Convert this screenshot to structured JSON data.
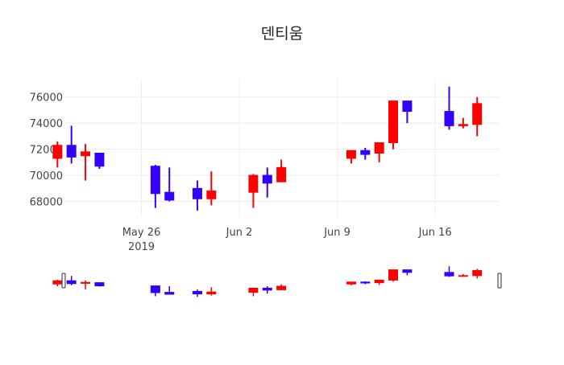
{
  "chart_data": {
    "type": "candlestick",
    "title": "덴티움",
    "xlabel": "",
    "ylabel": "",
    "x_ticks": [
      {
        "date": "2019-05-26",
        "label": "May 26",
        "sublabel": "2019"
      },
      {
        "date": "2019-06-02",
        "label": "Jun 2",
        "sublabel": ""
      },
      {
        "date": "2019-06-09",
        "label": "Jun 9",
        "sublabel": ""
      },
      {
        "date": "2019-06-16",
        "label": "Jun 16",
        "sublabel": ""
      }
    ],
    "y_ticks": [
      68000,
      70000,
      72000,
      74000,
      76000
    ],
    "y_tick_labels": [
      "68000",
      "70000",
      "72000",
      "74000",
      "76000"
    ],
    "xlim": [
      "2019-05-21",
      "2019-06-20"
    ],
    "ylim": [
      66800,
      77400
    ],
    "grid": true,
    "rangeslider": true,
    "increasing_color": "#ff0000",
    "decreasing_color": "#3300ff",
    "candles": [
      {
        "date": "2019-05-20",
        "open": 71300,
        "high": 72600,
        "low": 70600,
        "close": 72300
      },
      {
        "date": "2019-05-21",
        "open": 72300,
        "high": 73800,
        "low": 70900,
        "close": 71400
      },
      {
        "date": "2019-05-22",
        "open": 71500,
        "high": 72400,
        "low": 69600,
        "close": 71800
      },
      {
        "date": "2019-05-23",
        "open": 71700,
        "high": 71700,
        "low": 70500,
        "close": 70700
      },
      {
        "date": "2019-05-27",
        "open": 70700,
        "high": 70800,
        "low": 67500,
        "close": 68600
      },
      {
        "date": "2019-05-28",
        "open": 68700,
        "high": 70600,
        "low": 68000,
        "close": 68100
      },
      {
        "date": "2019-05-30",
        "open": 69000,
        "high": 69600,
        "low": 67300,
        "close": 68200
      },
      {
        "date": "2019-05-31",
        "open": 68200,
        "high": 70300,
        "low": 67700,
        "close": 68800
      },
      {
        "date": "2019-06-03",
        "open": 68700,
        "high": 70100,
        "low": 67500,
        "close": 70000
      },
      {
        "date": "2019-06-04",
        "open": 70000,
        "high": 70600,
        "low": 68300,
        "close": 69400
      },
      {
        "date": "2019-06-05",
        "open": 69500,
        "high": 71200,
        "low": 69500,
        "close": 70600
      },
      {
        "date": "2019-06-10",
        "open": 71300,
        "high": 71900,
        "low": 70900,
        "close": 71900
      },
      {
        "date": "2019-06-11",
        "open": 71900,
        "high": 72100,
        "low": 71200,
        "close": 71600
      },
      {
        "date": "2019-06-12",
        "open": 71700,
        "high": 72500,
        "low": 71000,
        "close": 72500
      },
      {
        "date": "2019-06-13",
        "open": 72500,
        "high": 75700,
        "low": 72000,
        "close": 75700
      },
      {
        "date": "2019-06-14",
        "open": 75700,
        "high": 75700,
        "low": 74000,
        "close": 74900
      },
      {
        "date": "2019-06-17",
        "open": 74900,
        "high": 76800,
        "low": 73500,
        "close": 73800
      },
      {
        "date": "2019-06-18",
        "open": 73800,
        "high": 74400,
        "low": 73600,
        "close": 73900
      },
      {
        "date": "2019-06-19",
        "open": 73900,
        "high": 76000,
        "low": 73000,
        "close": 75500
      }
    ]
  }
}
